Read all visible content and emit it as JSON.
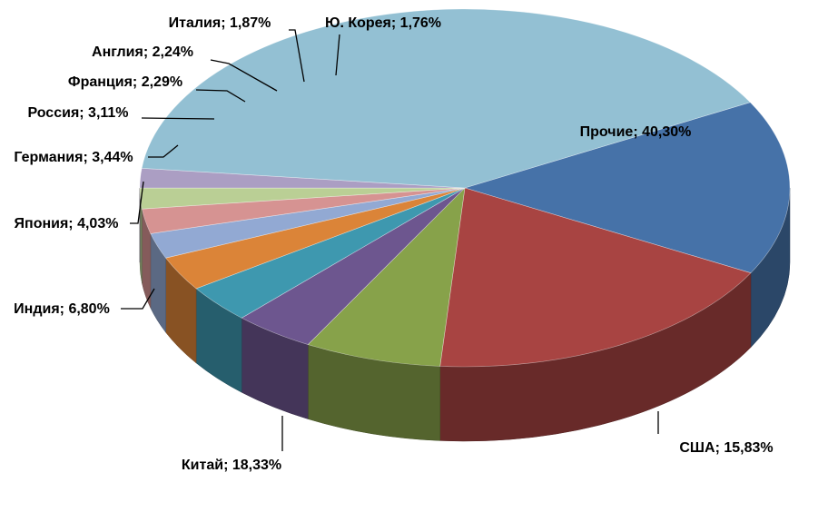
{
  "chart_data": {
    "type": "pie",
    "title": "",
    "slices": [
      {
        "label": "США; 15,83%",
        "value": 15.83,
        "color": "#4672A8"
      },
      {
        "label": "Китай; 18,33%",
        "value": 18.33,
        "color": "#A84442"
      },
      {
        "label": "Индия; 6,80%",
        "value": 6.8,
        "color": "#87A24A"
      },
      {
        "label": "Япония; 4,03%",
        "value": 4.03,
        "color": "#6D568F"
      },
      {
        "label": "Германия; 3,44%",
        "value": 3.44,
        "color": "#3E98AF"
      },
      {
        "label": "Россия; 3,11%",
        "value": 3.11,
        "color": "#DB8438"
      },
      {
        "label": "Франция; 2,29%",
        "value": 2.29,
        "color": "#92A9D3"
      },
      {
        "label": "Англия; 2,24%",
        "value": 2.24,
        "color": "#D69392"
      },
      {
        "label": "Италия; 1,87%",
        "value": 1.87,
        "color": "#BACF95"
      },
      {
        "label": "Ю. Корея; 1,76%",
        "value": 1.76,
        "color": "#AB9EC3"
      },
      {
        "label": "Прочие; 40,30%",
        "value": 40.3,
        "color": "#93C0D3"
      }
    ],
    "legend": "none",
    "style": "3d"
  }
}
